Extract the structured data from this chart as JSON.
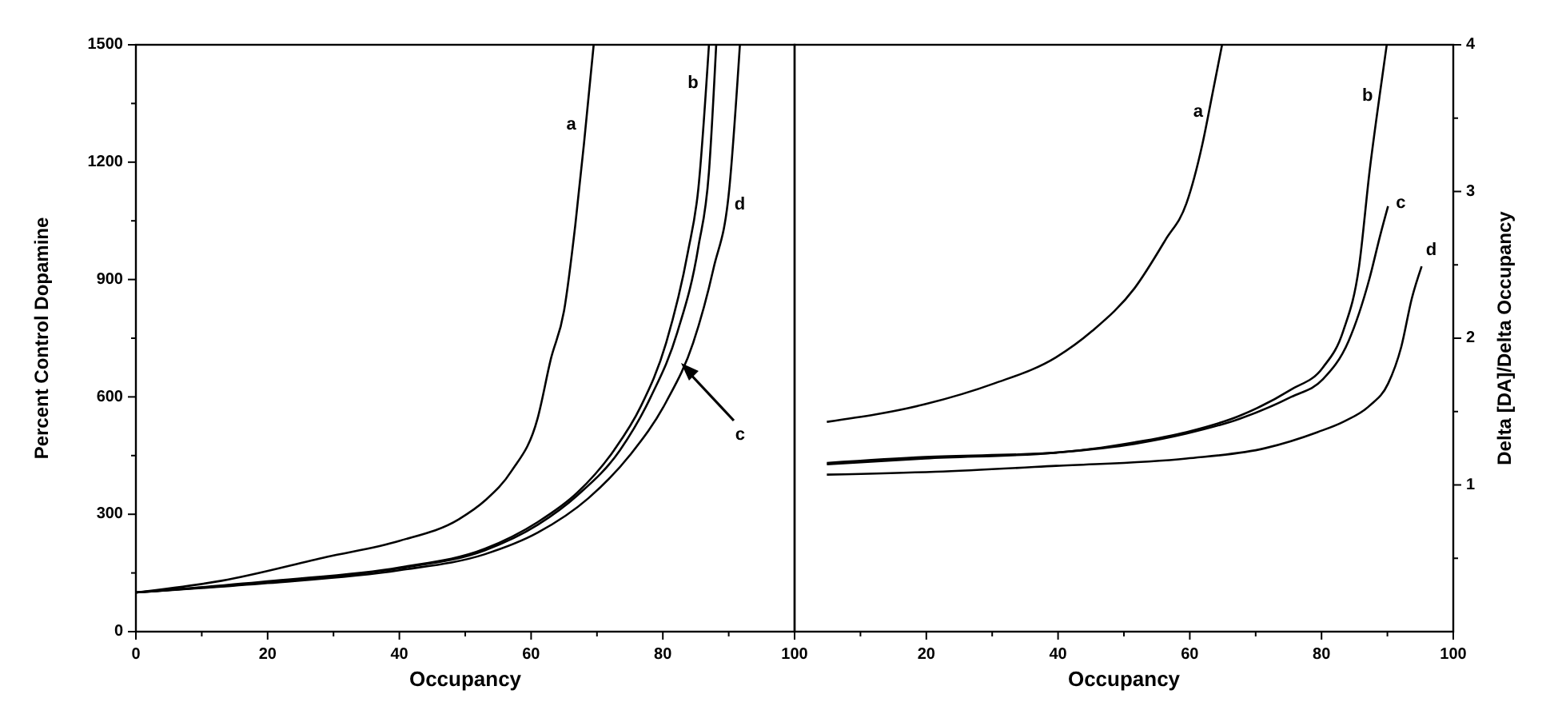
{
  "chart_data": [
    {
      "type": "line",
      "xlabel": "Occupancy",
      "ylabel": "Percent Control Dopamine",
      "xlim": [
        0,
        100
      ],
      "ylim": [
        0,
        1500
      ],
      "xticks": [
        0,
        {
          "value": 10,
          "label": null
        },
        20,
        {
          "value": 30,
          "label": null
        },
        40,
        {
          "value": 50,
          "label": null
        },
        60,
        {
          "value": 70,
          "label": null
        },
        80,
        {
          "value": 90,
          "label": null
        },
        100
      ],
      "yticks": [
        0,
        {
          "value": 150,
          "label": null
        },
        300,
        {
          "value": 450,
          "label": null
        },
        600,
        {
          "value": 750,
          "label": null
        },
        900,
        {
          "value": 1050,
          "label": null
        },
        1200,
        {
          "value": 1350,
          "label": null
        },
        1500
      ],
      "series": [
        {
          "name": "a",
          "color": "#000000",
          "x": [
            0,
            13,
            29,
            40,
            49,
            53,
            57,
            61,
            63,
            65,
            66.7,
            68,
            69.5
          ],
          "values": [
            100,
            130,
            191,
            232,
            287,
            335,
            410,
            546,
            697,
            820,
            1038,
            1243,
            1500
          ]
        },
        {
          "name": "b",
          "color": "#000000",
          "x": [
            0,
            21,
            40,
            53,
            61,
            67,
            72.6,
            76.6,
            80.5,
            83.8,
            85.4,
            87
          ],
          "values": [
            100,
            130,
            164,
            212,
            280,
            355,
            464,
            574,
            738,
            970,
            1134,
            1500
          ]
        },
        {
          "name": "c",
          "color": "#000000",
          "x": [
            0,
            21,
            40,
            53,
            61,
            67,
            73.5,
            78.2,
            82.2,
            85.4,
            87,
            88.1
          ],
          "values": [
            100,
            128,
            162,
            208,
            273,
            348,
            464,
            601,
            765,
            984,
            1175,
            1500
          ]
        },
        {
          "name": "d",
          "color": "#000000",
          "x": [
            0,
            20,
            40,
            53,
            61,
            68.7,
            75,
            80.5,
            84.6,
            87.7,
            90.1,
            91.7
          ],
          "values": [
            100,
            124,
            157,
            198,
            253,
            341,
            451,
            587,
            738,
            929,
            1134,
            1500
          ]
        }
      ]
    },
    {
      "type": "line",
      "xlabel": "Occupancy",
      "y2label": "Delta [DA]/Delta Occupancy",
      "xlim": [
        0,
        100
      ],
      "y2lim": [
        0,
        4
      ],
      "xticks": [
        {
          "value": 0,
          "label": null
        },
        {
          "value": 10,
          "label": null
        },
        20,
        {
          "value": 30,
          "label": null
        },
        40,
        {
          "value": 50,
          "label": null
        },
        60,
        {
          "value": 70,
          "label": null
        },
        80,
        {
          "value": 90,
          "label": null
        },
        100
      ],
      "y2ticks": [
        {
          "value": 0.5,
          "label": null
        },
        1,
        {
          "value": 1.5,
          "label": null
        },
        2,
        {
          "value": 2.5,
          "label": null
        },
        3,
        {
          "value": 3.5,
          "label": null
        },
        4
      ],
      "series": [
        {
          "name": "a",
          "color": "#000000",
          "axis": "y2",
          "x": [
            4.9,
            19.8,
            30.2,
            39.7,
            45.2,
            51.6,
            56.3,
            59.5,
            61.9,
            63.5,
            64.9
          ],
          "values": [
            1.43,
            1.55,
            1.69,
            1.87,
            2.05,
            2.34,
            2.67,
            2.92,
            3.32,
            3.68,
            4
          ]
        },
        {
          "name": "b",
          "color": "#000000",
          "axis": "y2",
          "x": [
            4.9,
            19.8,
            39.7,
            51.6,
            59.5,
            67.5,
            75.4,
            80.2,
            83.3,
            85.7,
            87.3,
            88.9,
            89.9
          ],
          "values": [
            1.15,
            1.19,
            1.22,
            1.29,
            1.36,
            1.47,
            1.65,
            1.8,
            2.05,
            2.49,
            3.14,
            3.68,
            4
          ]
        },
        {
          "name": "c",
          "color": "#000000",
          "axis": "y2",
          "x": [
            4.9,
            19.8,
            39.7,
            51.6,
            59.5,
            67.5,
            75.4,
            80.2,
            84.1,
            87.3,
            88.9,
            90.1
          ],
          "values": [
            1.14,
            1.18,
            1.22,
            1.28,
            1.35,
            1.45,
            1.6,
            1.72,
            1.98,
            2.41,
            2.7,
            2.9
          ]
        },
        {
          "name": "d",
          "color": "#000000",
          "axis": "y2",
          "x": [
            4.9,
            21.4,
            39.7,
            59.5,
            71.4,
            79.4,
            83.3,
            87.3,
            90.1,
            92.1,
            93.7,
            95.2
          ],
          "values": [
            1.07,
            1.09,
            1.13,
            1.18,
            1.25,
            1.36,
            1.43,
            1.54,
            1.69,
            1.94,
            2.27,
            2.49
          ]
        }
      ]
    }
  ]
}
